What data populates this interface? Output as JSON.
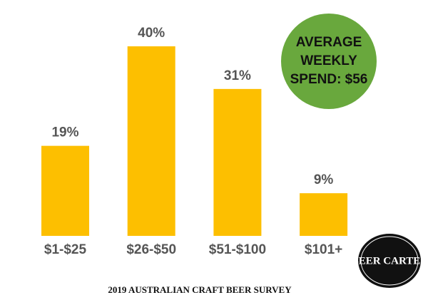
{
  "chart_data": {
    "type": "bar",
    "title": "2019 AUSTRALIAN CRAFT BEER SURVEY",
    "categories": [
      "$1-$25",
      "$26-$50",
      "$51-$100",
      "$101+"
    ],
    "values": [
      19,
      40,
      31,
      9
    ],
    "value_labels": [
      "19%",
      "40%",
      "31%",
      "9%"
    ],
    "color": "#fdbf00",
    "annotation": {
      "lines": [
        "AVERAGE",
        "WEEKLY",
        "SPEND: $56"
      ],
      "color": "#69a83d"
    },
    "logo": "BEER CARTEL"
  }
}
